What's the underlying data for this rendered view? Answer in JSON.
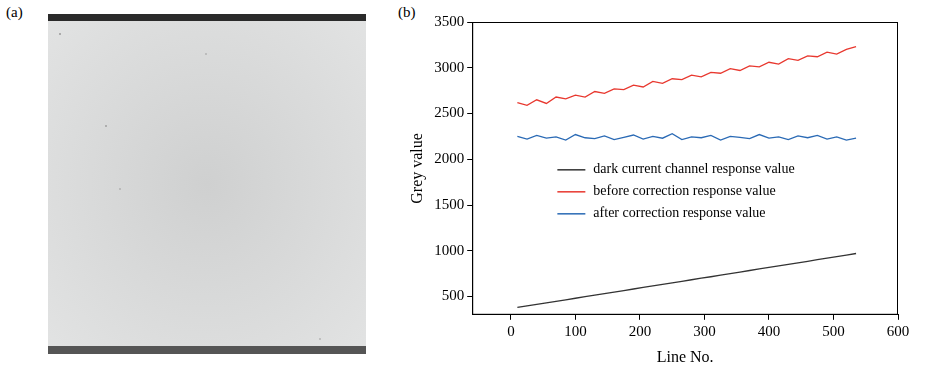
{
  "panel_labels": [
    "(a)",
    "(b)"
  ],
  "chart_data": {
    "type": "line",
    "x_label": "Line No.",
    "y_label": "Grey value",
    "x": [
      10,
      25,
      40,
      55,
      70,
      85,
      100,
      115,
      130,
      145,
      160,
      175,
      190,
      205,
      220,
      235,
      250,
      265,
      280,
      295,
      310,
      325,
      340,
      355,
      370,
      385,
      400,
      415,
      430,
      445,
      460,
      475,
      490,
      505,
      520,
      535
    ],
    "series": [
      {
        "name": "dark current channel response value",
        "color": "#333333",
        "values": [
          380,
          397,
          414,
          431,
          447,
          464,
          481,
          498,
          515,
          531,
          548,
          565,
          582,
          599,
          616,
          632,
          649,
          666,
          683,
          700,
          716,
          733,
          750,
          767,
          784,
          801,
          818,
          834,
          851,
          868,
          885,
          902,
          919,
          935,
          952,
          970
        ]
      },
      {
        "name": "before correction response value",
        "color": "#e8382f",
        "values": [
          2620,
          2590,
          2650,
          2610,
          2680,
          2660,
          2700,
          2680,
          2740,
          2720,
          2770,
          2760,
          2810,
          2790,
          2850,
          2830,
          2880,
          2870,
          2920,
          2900,
          2950,
          2940,
          2990,
          2970,
          3020,
          3010,
          3060,
          3040,
          3100,
          3080,
          3130,
          3120,
          3170,
          3150,
          3200,
          3230
        ]
      },
      {
        "name": "after correction response value",
        "color": "#2a6ab5",
        "values": [
          2250,
          2220,
          2260,
          2230,
          2245,
          2210,
          2270,
          2235,
          2225,
          2255,
          2215,
          2240,
          2265,
          2220,
          2250,
          2230,
          2280,
          2215,
          2245,
          2235,
          2260,
          2210,
          2250,
          2240,
          2225,
          2270,
          2230,
          2245,
          2215,
          2255,
          2235,
          2260,
          2220,
          2245,
          2210,
          2230
        ]
      }
    ],
    "xlim": [
      -60,
      600
    ],
    "xticks": [
      0,
      100,
      200,
      300,
      400,
      500,
      600
    ],
    "ylim": [
      300,
      3500
    ],
    "yticks": [
      500,
      1000,
      1500,
      2000,
      2500,
      3000,
      3500
    ],
    "grid": false,
    "legend": "center"
  }
}
